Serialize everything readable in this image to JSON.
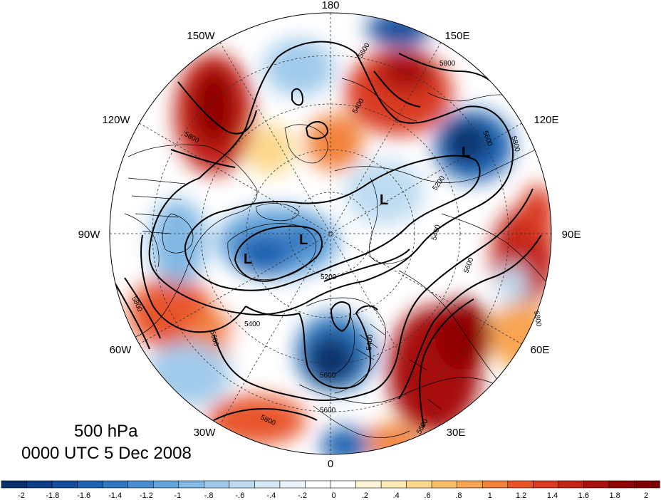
{
  "map": {
    "level_label": "500 hPa",
    "datetime_label": "0000 UTC 5 Dec 2008",
    "projection": "north-polar-stereographic",
    "longitude_labels": [
      "180",
      "150E",
      "120E",
      "90E",
      "60E",
      "30E",
      "0",
      "30W",
      "60W",
      "90W",
      "120W",
      "150W"
    ],
    "contour_labels": [
      "5600",
      "5800",
      "5400",
      "5200",
      "5600",
      "5800",
      "5400",
      "5600",
      "5800",
      "5200",
      "5400",
      "5600",
      "5600",
      "5400",
      "5600",
      "5800",
      "5800",
      "5600",
      "5800"
    ],
    "low_centers": [
      "L",
      "L",
      "L",
      "L"
    ],
    "colors": {
      "strong_negative": "#08306b",
      "negative": "#4a8fd0",
      "weak_negative": "#c7e0f4",
      "neutral": "#ffffff",
      "weak_positive": "#fde3a7",
      "positive": "#e8542a",
      "strong_positive": "#7f0000"
    }
  },
  "colorbar": {
    "tick_labels": [
      "-2",
      "-1.8",
      "-1.6",
      "-1.4",
      "-1.2",
      "-1",
      "-.8",
      "-.6",
      "-.4",
      "-.2",
      "0",
      ".2",
      ".4",
      ".6",
      ".8",
      "1",
      "1.2",
      "1.4",
      "1.6",
      "1.8",
      "2"
    ],
    "colors": [
      "#08306b",
      "#0b3c84",
      "#154e9c",
      "#1f62b0",
      "#2f77bf",
      "#4a8fd0",
      "#64a4db",
      "#82b8e4",
      "#a0cbeb",
      "#bddcf2",
      "#d6e9f7",
      "#eaf4fb",
      "#ffffff",
      "#ffffff",
      "#fff5d6",
      "#feeab0",
      "#fdd88a",
      "#fcc06a",
      "#f9a450",
      "#f3823a",
      "#e8542a",
      "#d93a20",
      "#c22417",
      "#a81010",
      "#8f0606",
      "#7f0000"
    ]
  }
}
